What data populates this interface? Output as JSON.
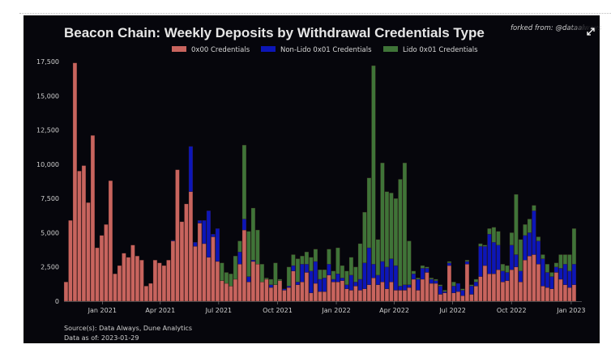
{
  "header": {
    "title": "Beacon Chain: Weekly Deposits by Withdrawal Credentials Type",
    "forked_from": "forked from: @dataalways",
    "expand_icon": "expand-icon"
  },
  "footer": {
    "source": "Source(s): Data Always, Dune Analytics",
    "data_as_of": "Data as of: 2023-01-29"
  },
  "chart_data": {
    "type": "bar",
    "stacked": true,
    "title": "Beacon Chain: Weekly Deposits by Withdrawal Credentials Type",
    "xlabel": "",
    "ylabel": "",
    "ylim": [
      0,
      17500
    ],
    "y_ticks": [
      0,
      2500,
      5000,
      7500,
      10000,
      12500,
      15000,
      17500
    ],
    "y_tick_labels": [
      "0",
      "2,500",
      "5,000",
      "7,500",
      "10,000",
      "12,500",
      "15,000",
      "17,500"
    ],
    "x_unit": "week index (weekly bars starting Nov 2020)",
    "x_ticks": [
      {
        "label": "Jan 2021",
        "week": 8.6
      },
      {
        "label": "Apr 2021",
        "week": 21.6
      },
      {
        "label": "Jul 2021",
        "week": 34.7
      },
      {
        "label": "Oct 2021",
        "week": 47.9
      },
      {
        "label": "Jan 2022",
        "week": 61.1
      },
      {
        "label": "Apr 2022",
        "week": 74.1
      },
      {
        "label": "Jul 2022",
        "week": 87.2
      },
      {
        "label": "Oct 2022",
        "week": 100.4
      },
      {
        "label": "Jan 2023",
        "week": 113.8
      }
    ],
    "legend_position": "top-center",
    "grid": false,
    "series": [
      {
        "name": "0x00 Credentials",
        "color": "#c8645e",
        "values": [
          1400,
          5900,
          17400,
          9500,
          9900,
          7200,
          12100,
          3900,
          4800,
          5600,
          8800,
          2000,
          2600,
          3500,
          3200,
          4100,
          3300,
          3000,
          1100,
          1300,
          3000,
          2800,
          2600,
          3000,
          4400,
          9600,
          5800,
          7100,
          8000,
          4000,
          5700,
          4200,
          3200,
          4700,
          2900,
          1500,
          1300,
          1100,
          1600,
          2700,
          5200,
          1400,
          2900,
          2700,
          1400,
          1600,
          1000,
          1200,
          1500,
          800,
          1000,
          2200,
          1200,
          1400,
          2100,
          600,
          1300,
          700,
          700,
          1900,
          1400,
          1400,
          1500,
          900,
          800,
          1100,
          800,
          900,
          1200,
          1700,
          1200,
          1400,
          900,
          1400,
          800,
          800,
          800,
          1000,
          1600,
          800,
          1600,
          2100,
          1300,
          1300,
          500,
          600,
          2600,
          600,
          700,
          400,
          2700,
          500,
          1100,
          1800,
          2600,
          2000,
          2000,
          2300,
          1400,
          1500,
          2300,
          2500,
          1400,
          3000,
          3300,
          3400,
          2700,
          1100,
          1000,
          900,
          2100,
          1600,
          1200,
          1000,
          1200
        ]
      },
      {
        "name": "Non-Lido 0x01 Credentials",
        "color": "#0c16b8",
        "values": [
          0,
          0,
          0,
          0,
          0,
          0,
          0,
          0,
          0,
          0,
          0,
          0,
          0,
          0,
          0,
          0,
          0,
          0,
          0,
          0,
          0,
          0,
          0,
          0,
          50,
          0,
          0,
          0,
          3300,
          300,
          200,
          1700,
          3400,
          200,
          2400,
          0,
          0,
          0,
          0,
          900,
          800,
          400,
          100,
          0,
          0,
          0,
          200,
          0,
          0,
          100,
          100,
          400,
          200,
          1300,
          600,
          1600,
          1600,
          900,
          1000,
          800,
          200,
          600,
          200,
          300,
          1100,
          300,
          800,
          1900,
          2700,
          1000,
          700,
          1500,
          1600,
          1700,
          1800,
          300,
          400,
          200,
          400,
          800,
          800,
          300,
          300,
          200,
          600,
          100,
          200,
          500,
          600,
          400,
          200,
          600,
          300,
          2200,
          1400,
          2900,
          2300,
          1800,
          800,
          600,
          1800,
          900,
          800,
          1800,
          1700,
          3200,
          1700,
          2000,
          1100,
          900,
          400,
          800,
          1500,
          1200,
          1500
        ]
      },
      {
        "name": "Lido 0x01 Credentials",
        "color": "#3f7438",
        "values": [
          0,
          0,
          0,
          0,
          0,
          0,
          0,
          0,
          0,
          0,
          0,
          0,
          0,
          0,
          0,
          0,
          0,
          0,
          0,
          0,
          0,
          0,
          0,
          0,
          0,
          0,
          0,
          0,
          0,
          0,
          0,
          0,
          0,
          0,
          0,
          1300,
          800,
          900,
          1700,
          800,
          5400,
          3300,
          3800,
          2500,
          1300,
          100,
          400,
          1600,
          100,
          0,
          1400,
          800,
          1700,
          600,
          900,
          1000,
          900,
          700,
          600,
          1100,
          600,
          1900,
          900,
          1000,
          1300,
          1100,
          2600,
          3700,
          5100,
          14500,
          2600,
          7200,
          5500,
          4800,
          4900,
          7800,
          8900,
          3200,
          200,
          100,
          200,
          100,
          100,
          100,
          100,
          100,
          100,
          300,
          0,
          100,
          100,
          100,
          200,
          200,
          100,
          400,
          1100,
          1000,
          500,
          500,
          900,
          4400,
          2300,
          800,
          1000,
          400,
          300,
          300,
          600,
          300,
          300,
          1000,
          700,
          1200,
          2600
        ]
      }
    ]
  }
}
